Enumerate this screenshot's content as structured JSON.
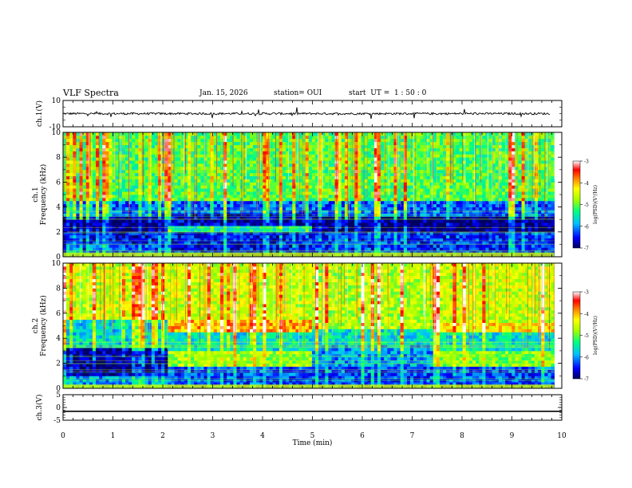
{
  "header": {
    "title": "VLF Spectra",
    "date": "Jan. 15, 2026",
    "station": "station= OUI",
    "start": "start  UT =  1 : 50 : 0"
  },
  "chart_data": [
    {
      "type": "line",
      "panel": "ch1-waveform",
      "ylabel": "ch.1(V)",
      "ylim": [
        -10,
        10
      ],
      "yticks": [
        "10",
        "-10"
      ],
      "xlim": [
        0,
        10
      ],
      "baseline": 0,
      "color": "#000000"
    },
    {
      "type": "heatmap",
      "panel": "ch1-spectrogram",
      "ylabel": "ch.1\nFrequency (kHz)",
      "xlim": [
        0,
        10
      ],
      "ylim": [
        0,
        10
      ],
      "yticks": [
        "0",
        "2",
        "4",
        "6",
        "8",
        "10"
      ],
      "colorbar": {
        "label": "log(PSD)(V²/Hz)",
        "ticks": [
          "-3",
          "-4",
          "-5",
          "-6",
          "-7"
        ],
        "range": [
          -7,
          -3
        ],
        "colors": [
          "#000060",
          "#0000ff",
          "#00c0ff",
          "#00ff80",
          "#a0ff00",
          "#ffff00",
          "#ff8000",
          "#ff0000",
          "#ffffff"
        ]
      },
      "data_end_min": 9.85,
      "bands": [
        {
          "t0": 0,
          "t1": 2.1,
          "f0": 0,
          "f1": 1,
          "level": -6.3
        },
        {
          "t0": 0,
          "t1": 2.1,
          "f0": 1,
          "f1": 2,
          "level": -6.6
        },
        {
          "t0": 0,
          "t1": 2.1,
          "f0": 2,
          "f1": 3.2,
          "level": -6.9
        },
        {
          "t0": 0,
          "t1": 2.1,
          "f0": 3.2,
          "f1": 4.5,
          "level": -6.2
        },
        {
          "t0": 0,
          "t1": 2.1,
          "f0": 4.5,
          "f1": 10,
          "level": -5.2
        },
        {
          "t0": 2.1,
          "t1": 5.0,
          "f0": 0,
          "f1": 2,
          "level": -6.5
        },
        {
          "t0": 2.1,
          "t1": 5.0,
          "f0": 2.1,
          "f1": 2.5,
          "level": -5.5
        },
        {
          "t0": 2.1,
          "t1": 5.0,
          "f0": 2.5,
          "f1": 3.5,
          "level": -6.7
        },
        {
          "t0": 2.1,
          "t1": 5.0,
          "f0": 3.5,
          "f1": 4.5,
          "level": -6.2
        },
        {
          "t0": 2.1,
          "t1": 5.0,
          "f0": 4.5,
          "f1": 10,
          "level": -5.1
        },
        {
          "t0": 5.0,
          "t1": 9.85,
          "f0": 0,
          "f1": 2,
          "level": -6.4
        },
        {
          "t0": 5.0,
          "t1": 9.85,
          "f0": 2,
          "f1": 3.3,
          "level": -6.9
        },
        {
          "t0": 5.0,
          "t1": 9.85,
          "f0": 3.3,
          "f1": 4.4,
          "level": -6.2
        },
        {
          "t0": 5.0,
          "t1": 9.85,
          "f0": 4.4,
          "f1": 10,
          "level": -5.1
        }
      ]
    },
    {
      "type": "heatmap",
      "panel": "ch2-spectrogram",
      "ylabel": "ch.2\nFrequency (kHz)",
      "xlim": [
        0,
        10
      ],
      "ylim": [
        0,
        10
      ],
      "yticks": [
        "0",
        "2",
        "4",
        "6",
        "8",
        "10"
      ],
      "colorbar": {
        "label": "log(PSD)(V²/Hz)",
        "ticks": [
          "-3",
          "-4",
          "-5",
          "-6",
          "-7"
        ],
        "range": [
          -7,
          -3
        ],
        "colors": [
          "#000060",
          "#0000ff",
          "#00c0ff",
          "#00ff80",
          "#a0ff00",
          "#ffff00",
          "#ff8000",
          "#ff0000",
          "#ffffff"
        ]
      },
      "data_end_min": 9.85,
      "bands": [
        {
          "t0": 0,
          "t1": 2.1,
          "f0": 0,
          "f1": 1,
          "level": -6.0
        },
        {
          "t0": 0,
          "t1": 2.1,
          "f0": 1,
          "f1": 3.3,
          "level": -6.8
        },
        {
          "t0": 0,
          "t1": 2.1,
          "f0": 3.3,
          "f1": 5.5,
          "level": -5.7
        },
        {
          "t0": 0,
          "t1": 2.1,
          "f0": 5.5,
          "f1": 10,
          "level": -4.6
        },
        {
          "t0": 2.1,
          "t1": 5.0,
          "f0": 0,
          "f1": 1.8,
          "level": -6.3
        },
        {
          "t0": 2.1,
          "t1": 5.0,
          "f0": 1.8,
          "f1": 3.0,
          "level": -4.8
        },
        {
          "t0": 2.1,
          "t1": 5.0,
          "f0": 3.0,
          "f1": 4.6,
          "level": -5.6
        },
        {
          "t0": 2.1,
          "t1": 5.0,
          "f0": 4.6,
          "f1": 5.4,
          "level": -4.0
        },
        {
          "t0": 2.1,
          "t1": 5.0,
          "f0": 5.4,
          "f1": 10,
          "level": -4.6
        },
        {
          "t0": 5.0,
          "t1": 7.4,
          "f0": 0,
          "f1": 1.8,
          "level": -6.3
        },
        {
          "t0": 5.0,
          "t1": 7.4,
          "f0": 1.8,
          "f1": 3.5,
          "level": -6.0
        },
        {
          "t0": 5.0,
          "t1": 7.4,
          "f0": 3.5,
          "f1": 4.8,
          "level": -5.6
        },
        {
          "t0": 5.0,
          "t1": 7.4,
          "f0": 4.8,
          "f1": 10,
          "level": -4.7
        },
        {
          "t0": 7.4,
          "t1": 9.85,
          "f0": 0,
          "f1": 1.8,
          "level": -6.3
        },
        {
          "t0": 7.4,
          "t1": 9.85,
          "f0": 1.8,
          "f1": 3.0,
          "level": -4.9
        },
        {
          "t0": 7.4,
          "t1": 9.85,
          "f0": 3.0,
          "f1": 4.5,
          "level": -5.6
        },
        {
          "t0": 7.4,
          "t1": 9.85,
          "f0": 4.5,
          "f1": 5.3,
          "level": -4.2
        },
        {
          "t0": 7.4,
          "t1": 9.85,
          "f0": 5.3,
          "f1": 10,
          "level": -4.6
        }
      ]
    },
    {
      "type": "line",
      "panel": "ch3-waveform",
      "ylabel": "ch.3(V)",
      "ylim": [
        -5,
        5
      ],
      "yticks": [
        "5",
        "0",
        "-5"
      ],
      "xlim": [
        0,
        10
      ],
      "value": -1.5,
      "xlabel": "Time (min)",
      "xticks": [
        "0",
        "1",
        "2",
        "3",
        "4",
        "5",
        "6",
        "7",
        "8",
        "9",
        "10"
      ],
      "color": "#000000"
    }
  ]
}
